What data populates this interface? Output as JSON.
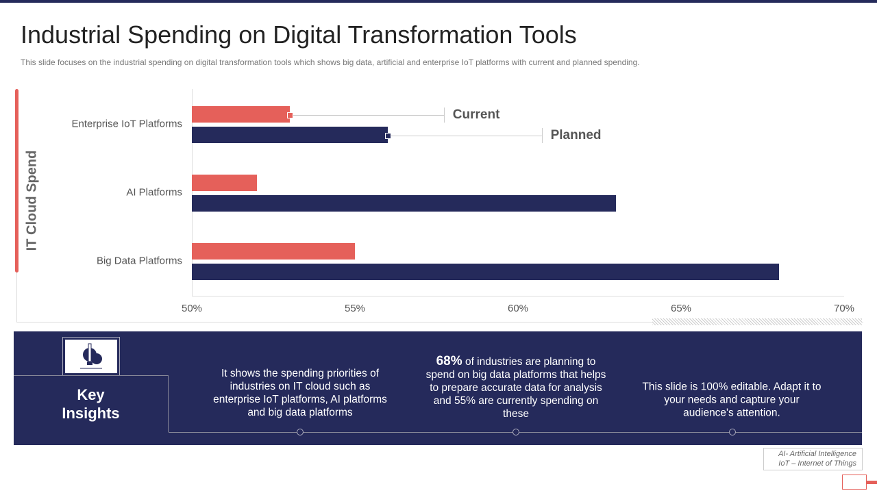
{
  "title": "Industrial Spending on Digital Transformation Tools",
  "subtitle": "This slide focuses on the industrial spending on digital transformation tools which shows big data, artificial and enterprise IoT platforms with current and planned spending.",
  "chart_data": {
    "type": "bar",
    "orientation": "horizontal",
    "ylabel": "IT Cloud Spend",
    "categories": [
      "Enterprise IoT Platforms",
      "AI Platforms",
      "Big Data Platforms"
    ],
    "series": [
      {
        "name": "Current",
        "color": "#e5605a",
        "values": [
          53,
          52,
          55
        ]
      },
      {
        "name": "Planned",
        "color": "#252a5b",
        "values": [
          56,
          63,
          68
        ]
      }
    ],
    "xlim": [
      50,
      70
    ],
    "xticks": [
      "50%",
      "55%",
      "60%",
      "65%",
      "70%"
    ],
    "grid": false,
    "legend": "callout-labels"
  },
  "insights": {
    "heading_line1": "Key",
    "heading_line2": "Insights",
    "icon": "lightbulb-gear-icon",
    "items": [
      {
        "bold": "",
        "text": "It shows the spending priorities of industries on IT cloud such as enterprise IoT platforms, AI platforms and big data platforms"
      },
      {
        "bold": "68%",
        "text": " of industries are planning to spend on big data platforms that helps to prepare accurate data for analysis and 55% are currently spending on these"
      },
      {
        "bold": "",
        "text": "This slide is 100% editable. Adapt it to your needs and capture your audience's attention."
      }
    ]
  },
  "footnote": {
    "line1": "AI- Artificial Intelligence",
    "line2": "IoT – Internet of Things"
  }
}
